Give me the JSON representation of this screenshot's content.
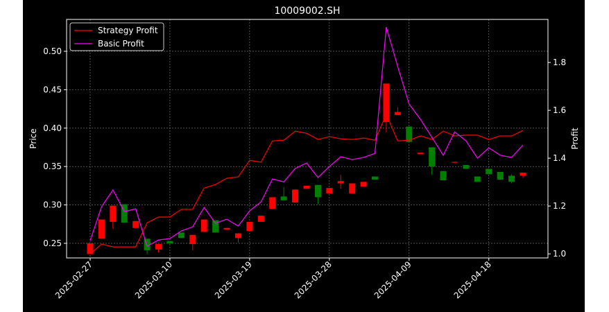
{
  "chart_data": {
    "type": "candlestick",
    "title": "10009002.SH",
    "ylabel": "Price",
    "y2label": "Profit",
    "categories": [
      "2025-02-27",
      null,
      null,
      null,
      null,
      null,
      null,
      "2025-03-10",
      null,
      null,
      null,
      null,
      null,
      null,
      "2025-03-19",
      null,
      null,
      null,
      null,
      null,
      null,
      "2025-03-28",
      null,
      null,
      null,
      null,
      null,
      null,
      "2025-04-09",
      null,
      null,
      null,
      null,
      null,
      null,
      "2025-04-18",
      null,
      null,
      null
    ],
    "open": [
      0.236,
      0.256,
      0.278,
      0.301,
      0.27,
      0.256,
      0.242,
      0.253,
      0.264,
      0.249,
      0.265,
      0.28,
      0.268,
      0.257,
      0.266,
      0.278,
      0.295,
      0.311,
      0.303,
      0.321,
      0.326,
      0.315,
      0.328,
      0.315,
      0.324,
      0.337,
      0.408,
      0.417,
      0.402,
      0.366,
      0.375,
      0.344,
      0.355,
      0.352,
      0.337,
      0.347,
      0.343,
      0.338,
      0.338
    ],
    "high": [
      0.25,
      0.281,
      0.299,
      0.301,
      0.279,
      0.256,
      0.249,
      0.253,
      0.264,
      0.261,
      0.281,
      0.28,
      0.27,
      0.263,
      0.278,
      0.286,
      0.31,
      0.323,
      0.32,
      0.325,
      0.326,
      0.322,
      0.339,
      0.328,
      0.33,
      0.337,
      0.458,
      0.427,
      0.402,
      0.368,
      0.375,
      0.344,
      0.356,
      0.352,
      0.337,
      0.347,
      0.343,
      0.34,
      0.342
    ],
    "low": [
      0.236,
      0.256,
      0.269,
      0.277,
      0.27,
      0.236,
      0.238,
      0.25,
      0.257,
      0.241,
      0.265,
      0.264,
      0.268,
      0.251,
      0.266,
      0.278,
      0.295,
      0.306,
      0.303,
      0.321,
      0.301,
      0.315,
      0.321,
      0.315,
      0.324,
      0.333,
      0.395,
      0.417,
      0.382,
      0.366,
      0.339,
      0.332,
      0.355,
      0.347,
      0.33,
      0.34,
      0.333,
      0.328,
      0.335
    ],
    "close": [
      0.25,
      0.281,
      0.299,
      0.277,
      0.279,
      0.241,
      0.249,
      0.25,
      0.257,
      0.261,
      0.281,
      0.264,
      0.27,
      0.263,
      0.278,
      0.286,
      0.31,
      0.306,
      0.32,
      0.325,
      0.31,
      0.322,
      0.331,
      0.328,
      0.33,
      0.333,
      0.458,
      0.421,
      0.382,
      0.368,
      0.35,
      0.332,
      0.356,
      0.347,
      0.33,
      0.34,
      0.333,
      0.33,
      0.342
    ],
    "up_color": "#ff0000",
    "down_color": "#008000",
    "series": [
      {
        "name": "Strategy Profit",
        "color": "#ff0000",
        "axis": "y2",
        "values": [
          1.0,
          1.041,
          1.029,
          1.029,
          1.029,
          1.13,
          1.154,
          1.154,
          1.186,
          1.186,
          1.275,
          1.29,
          1.316,
          1.322,
          1.391,
          1.383,
          1.472,
          1.475,
          1.513,
          1.504,
          1.478,
          1.49,
          1.481,
          1.478,
          1.484,
          1.475,
          1.583,
          1.472,
          1.475,
          1.493,
          1.478,
          1.513,
          1.493,
          1.496,
          1.496,
          1.478,
          1.493,
          1.493,
          1.516
        ]
      },
      {
        "name": "Basic Profit",
        "color": "#ff00ff",
        "axis": "y2",
        "values": [
          1.055,
          1.197,
          1.267,
          1.177,
          1.188,
          1.032,
          1.058,
          1.064,
          1.096,
          1.113,
          1.194,
          1.128,
          1.145,
          1.116,
          1.18,
          1.217,
          1.313,
          1.301,
          1.357,
          1.38,
          1.319,
          1.365,
          1.406,
          1.394,
          1.403,
          1.42,
          1.948,
          1.783,
          1.626,
          1.562,
          1.487,
          1.412,
          1.51,
          1.472,
          1.4,
          1.443,
          1.412,
          1.403,
          1.455
        ]
      }
    ],
    "ylim": [
      0.231,
      0.5415
    ],
    "yticks": [
      0.25,
      {
        "value": 0.3,
        "label": "0.30"
      },
      0.35,
      {
        "value": 0.4,
        "label": "0.40"
      },
      0.45,
      {
        "value": 0.5,
        "label": "0.50"
      }
    ],
    "y2lim": [
      0.983,
      1.98
    ],
    "y2ticks": [
      {
        "value": 1,
        "label": "1.0"
      },
      1.2,
      1.4,
      1.6,
      1.8
    ],
    "grid": true,
    "legend": "upper left"
  }
}
